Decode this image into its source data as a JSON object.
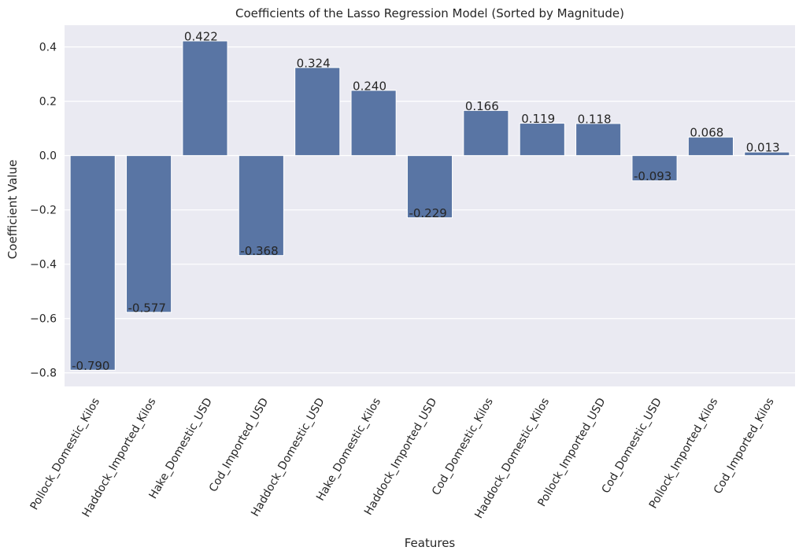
{
  "chart_data": {
    "type": "bar",
    "title": "Coefficients of the Lasso Regression Model (Sorted by Magnitude)",
    "xlabel": "Features",
    "ylabel": "Coefficient Value",
    "categories": [
      "Pollock_Domestic_Kilos",
      "Haddock_Imported_Kilos",
      "Hake_Domestic_USD",
      "Cod_Imported_USD",
      "Haddock_Domestic_USD",
      "Hake_Domestic_Kilos",
      "Haddock_Imported_USD",
      "Cod_Domestic_Kilos",
      "Haddock_Domestic_Kilos",
      "Pollock_Imported_USD",
      "Cod_Domestic_USD",
      "Pollock_Imported_Kilos",
      "Cod_Imported_Kilos"
    ],
    "values": [
      -0.79,
      -0.577,
      0.422,
      -0.368,
      0.324,
      0.24,
      -0.229,
      0.166,
      0.119,
      0.118,
      -0.093,
      0.068,
      0.013
    ],
    "value_labels": [
      "-0.790",
      "-0.577",
      "0.422",
      "-0.368",
      "0.324",
      "0.240",
      "-0.229",
      "0.166",
      "0.119",
      "0.118",
      "-0.093",
      "0.068",
      "0.013"
    ],
    "yticks": [
      0.4,
      0.2,
      0.0,
      -0.2,
      -0.4,
      -0.6,
      -0.8
    ],
    "ytick_labels": [
      "0.4",
      "0.2",
      "0.0",
      "−0.2",
      "−0.4",
      "−0.6",
      "−0.8"
    ],
    "ylim": [
      -0.85,
      0.48
    ],
    "grid": true,
    "bar_color": "#5975a4",
    "background_color": "#eaeaf2",
    "grid_color": "#ffffff"
  }
}
